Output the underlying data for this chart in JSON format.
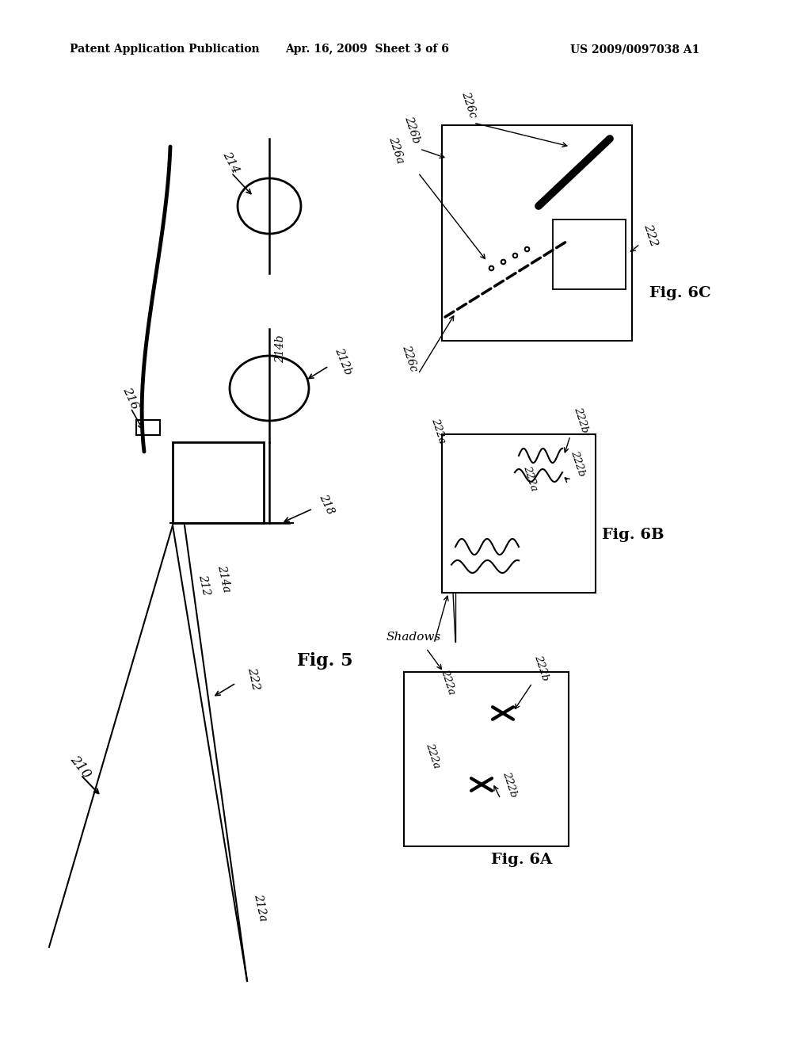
{
  "bg_color": "#ffffff",
  "header_left": "Patent Application Publication",
  "header_mid": "Apr. 16, 2009  Sheet 3 of 6",
  "header_right": "US 2009/0097038 A1"
}
